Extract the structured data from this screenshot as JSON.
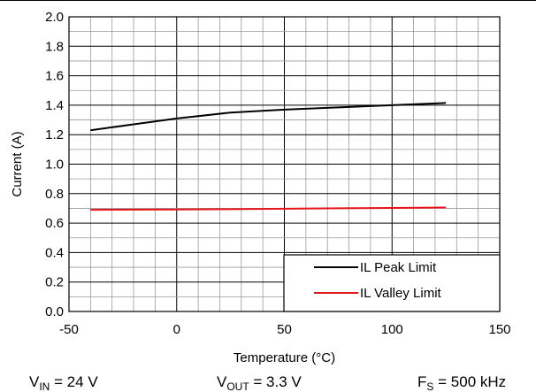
{
  "chart_data": {
    "type": "line",
    "xlabel": "Temperature (°C)",
    "ylabel": "Current (A)",
    "xlim": [
      -50,
      150
    ],
    "ylim": [
      0.0,
      2.0
    ],
    "x_ticks": [
      "-50",
      "0",
      "50",
      "100",
      "150"
    ],
    "y_ticks": [
      "0.0",
      "0.2",
      "0.4",
      "0.6",
      "0.8",
      "1.0",
      "1.2",
      "1.4",
      "1.6",
      "1.8",
      "2.0"
    ],
    "x_tick_values": [
      -50,
      0,
      50,
      100,
      150
    ],
    "y_tick_values": [
      0.0,
      0.2,
      0.4,
      0.6,
      0.8,
      1.0,
      1.2,
      1.4,
      1.6,
      1.8,
      2.0
    ],
    "x_minor_step": 10,
    "y_minor_step": 0.1,
    "grid": true,
    "legend_position": "bottom-right",
    "series": [
      {
        "name": "IL Peak Limit",
        "color": "#000000",
        "x": [
          -40,
          -20,
          0,
          25,
          50,
          75,
          100,
          125
        ],
        "y": [
          1.23,
          1.27,
          1.31,
          1.35,
          1.37,
          1.385,
          1.4,
          1.415
        ]
      },
      {
        "name": "IL Valley Limit",
        "color": "#e8141b",
        "x": [
          -40,
          0,
          25,
          50,
          75,
          100,
          125
        ],
        "y": [
          0.69,
          0.692,
          0.694,
          0.697,
          0.7,
          0.703,
          0.706
        ]
      }
    ]
  },
  "conditions": {
    "vin": {
      "sym": "V",
      "sub": "IN",
      "val": " = 24 V"
    },
    "vout": {
      "sym": "V",
      "sub": "OUT",
      "val": " = 3.3 V"
    },
    "fs": {
      "sym": "F",
      "sub": "S",
      "val": " = 500 kHz"
    }
  }
}
